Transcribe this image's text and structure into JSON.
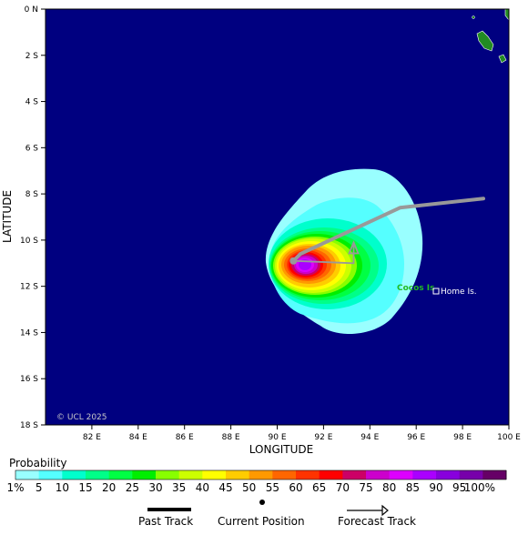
{
  "axes": {
    "xlabel": "LONGITUDE",
    "ylabel": "LATITUDE",
    "lon_ticks": [
      "82 E",
      "84 E",
      "86 E",
      "88 E",
      "90 E",
      "92 E",
      "94 E",
      "96 E",
      "98 E",
      "100 E"
    ],
    "lat_ticks": [
      "0 N",
      "2 S",
      "4 S",
      "6 S",
      "8 S",
      "10 S",
      "12 S",
      "14 S",
      "16 S",
      "18 S"
    ],
    "lon_range": [
      80,
      100
    ],
    "lat_range": [
      0,
      -18
    ]
  },
  "map": {
    "ocean_color": "#000080",
    "land_color": "#228b22",
    "places": {
      "cocos": "Cocos Is",
      "home": "Home Is."
    },
    "credit": "© UCL 2025"
  },
  "track": {
    "past": [
      [
        98.9,
        -8.2
      ],
      [
        95.3,
        -8.6
      ],
      [
        91.0,
        -10.6
      ],
      [
        90.7,
        -10.9
      ]
    ],
    "current": [
      90.7,
      -10.9
    ],
    "forecast": [
      [
        90.7,
        -10.9
      ],
      [
        93.3,
        -11.0
      ],
      [
        93.3,
        -10.1
      ]
    ]
  },
  "legend": {
    "title": "Probability",
    "ticks": [
      "1%",
      "5",
      "10",
      "15",
      "20",
      "25",
      "30",
      "35",
      "40",
      "45",
      "50",
      "55",
      "60",
      "65",
      "70",
      "75",
      "80",
      "85",
      "90",
      "95",
      "100%"
    ],
    "colors": [
      "#99ffff",
      "#55ffff",
      "#00ffcc",
      "#00ff88",
      "#00ff44",
      "#00ee00",
      "#88ff00",
      "#ccff00",
      "#ffff00",
      "#ffcc00",
      "#ff9900",
      "#ff6600",
      "#ff3300",
      "#ff0000",
      "#cc0066",
      "#cc00cc",
      "#dd00ff",
      "#aa00ff",
      "#8800dd",
      "#7700aa",
      "#660066"
    ]
  },
  "key": {
    "past_label": "Past Track",
    "current_label": "Current Position",
    "forecast_label": "Forecast Track"
  }
}
